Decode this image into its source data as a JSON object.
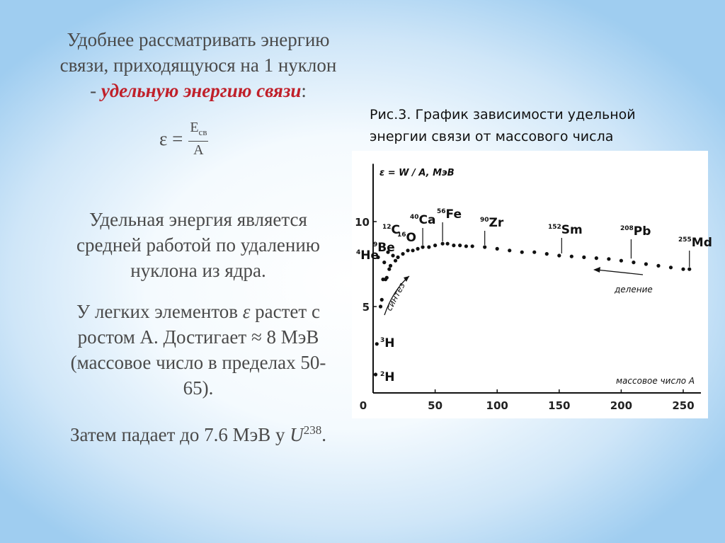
{
  "text": {
    "intro": [
      "Удобнее рассматривать энергию",
      "связи, приходящуюся на 1 нуклон"
    ],
    "intro_last": {
      "before": "- ",
      "emphasis": "удельную энергию связи",
      "after": ":"
    },
    "formula": {
      "lhs": "ε =",
      "numerator": "E",
      "numerator_sub": "св",
      "denominator": "A"
    },
    "p2": [
      "Удельная энергия является",
      "средней работой по удалению",
      "нуклона из ядра."
    ],
    "p3": {
      "before": "У легких элементов ",
      "symbol": "ε",
      "after": " растет с",
      "lines": [
        "ростом А. Достигает ≈ 8 МэВ",
        "(массовое число в пределах 50-",
        "65)."
      ]
    },
    "p4": {
      "before": "Затем падает до 7.6 МэВ у ",
      "symbol": "U",
      "sup": "238",
      "after": "."
    }
  },
  "caption": [
    "Рис.3. График зависимости удельной",
    "энергии связи от массового числа"
  ],
  "chart_data": {
    "type": "scatter",
    "ylabel": "ε = W / A, МэВ",
    "xlabel": "массовое число A",
    "color": "#111111",
    "x": [
      2,
      3,
      4,
      6,
      7,
      8,
      9,
      10,
      11,
      12,
      13,
      14,
      16,
      18,
      20,
      24,
      28,
      32,
      36,
      40,
      45,
      50,
      56,
      60,
      65,
      70,
      75,
      80,
      90,
      100,
      110,
      120,
      130,
      140,
      150,
      160,
      170,
      180,
      190,
      200,
      210,
      220,
      230,
      240,
      250,
      255
    ],
    "values": [
      1.0,
      2.8,
      7.9,
      5.0,
      5.4,
      6.6,
      7.6,
      6.6,
      6.7,
      8.2,
      7.2,
      7.4,
      8.0,
      7.7,
      7.9,
      8.1,
      8.3,
      8.3,
      8.4,
      8.5,
      8.5,
      8.6,
      8.7,
      8.7,
      8.6,
      8.6,
      8.55,
      8.55,
      8.5,
      8.4,
      8.3,
      8.2,
      8.2,
      8.1,
      8.0,
      7.95,
      7.9,
      7.85,
      7.8,
      7.7,
      7.6,
      7.5,
      7.4,
      7.3,
      7.2,
      7.2
    ],
    "xlim": [
      0,
      264
    ],
    "ylim": [
      0,
      13.4
    ],
    "xticks": [
      0,
      50,
      100,
      150,
      200,
      250
    ],
    "yticks": [
      5,
      10
    ],
    "elements": [
      {
        "mass": "2",
        "symbol": "H",
        "A": 2,
        "e": 1.0
      },
      {
        "mass": "3",
        "symbol": "H",
        "A": 3,
        "e": 2.8
      },
      {
        "mass": "4",
        "symbol": "He",
        "A": 4,
        "e": 7.9
      },
      {
        "mass": "9",
        "symbol": "Be",
        "A": 9,
        "e": 7.6
      },
      {
        "mass": "12",
        "symbol": "C",
        "A": 12,
        "e": 8.2
      },
      {
        "mass": "16",
        "symbol": "O",
        "A": 16,
        "e": 8.0
      },
      {
        "mass": "40",
        "symbol": "Ca",
        "A": 40,
        "e": 8.5
      },
      {
        "mass": "56",
        "symbol": "Fe",
        "A": 56,
        "e": 8.7
      },
      {
        "mass": "90",
        "symbol": "Zr",
        "A": 90,
        "e": 8.5
      },
      {
        "mass": "152",
        "symbol": "Sm",
        "A": 152,
        "e": 8.0
      },
      {
        "mass": "208",
        "symbol": "Pb",
        "A": 208,
        "e": 7.7
      },
      {
        "mass": "255",
        "symbol": "Md",
        "A": 255,
        "e": 7.2
      }
    ],
    "annotations": {
      "fusion": "синтез",
      "fission": "деление"
    }
  }
}
